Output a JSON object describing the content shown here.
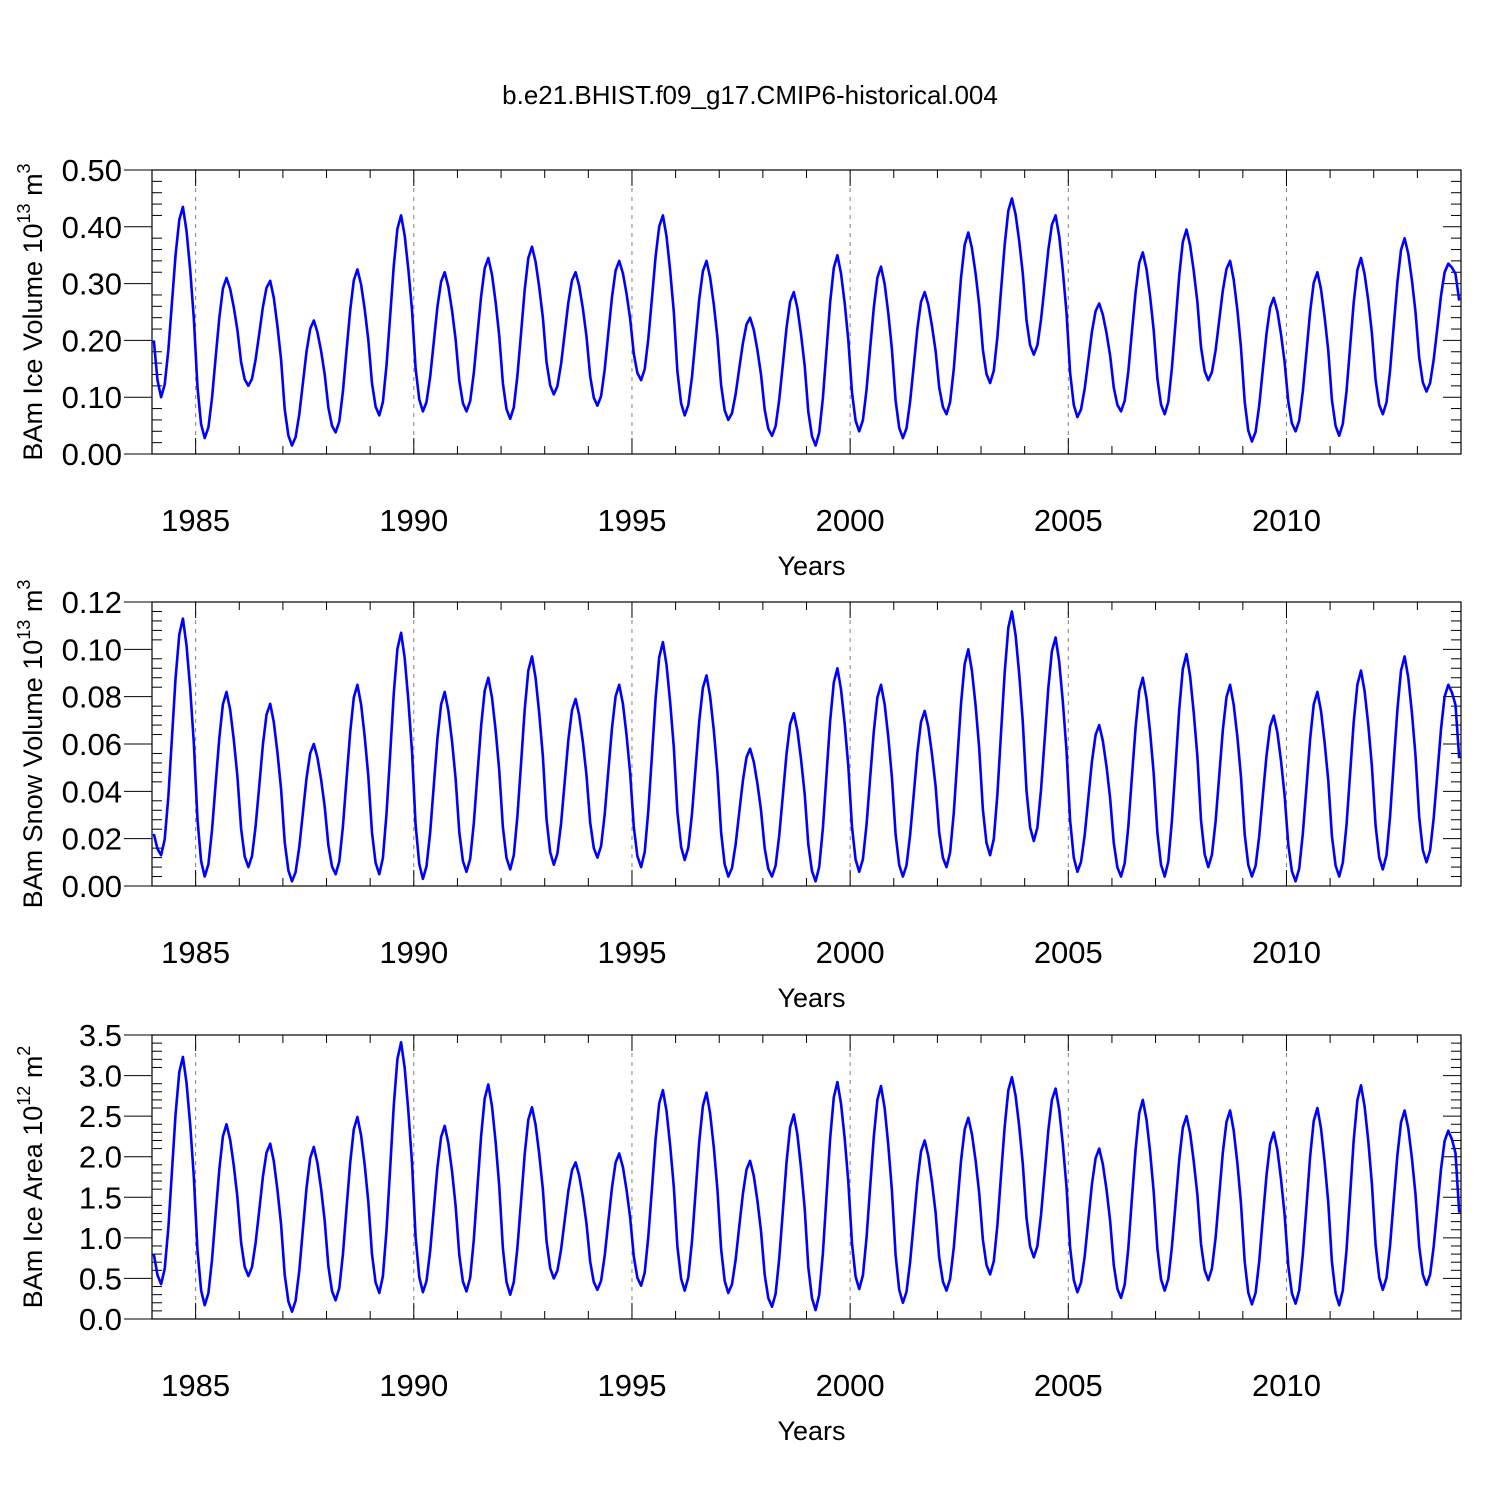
{
  "title": "b.e21.BHIST.f09_g17.CMIP6-historical.004",
  "style": {
    "line_color": "#0000ff",
    "axis_color": "#000000",
    "guide_color": "#808080"
  },
  "chart_data": [
    {
      "type": "line",
      "ylabel_main": "BAm Ice Volume 10",
      "ylabel_sup": "13",
      "ylabel_unit": " m",
      "ylabel_unit_sup": "3",
      "xlabel": "Years",
      "xlim": [
        1984.0,
        2014.0
      ],
      "ylim": [
        0.0,
        0.5
      ],
      "yticks": [
        0.0,
        0.1,
        0.2,
        0.3,
        0.4,
        0.5
      ],
      "ytick_labels": [
        "0.00",
        "0.10",
        "0.20",
        "0.30",
        "0.40",
        "0.50"
      ],
      "xticks": [
        1985,
        1990,
        1995,
        2000,
        2005,
        2010
      ],
      "xtick_labels": [
        "1985",
        "1990",
        "1995",
        "2000",
        "2005",
        "2010"
      ],
      "guide_lines_x": [
        1985,
        1990,
        1995,
        2000,
        2005,
        2010
      ],
      "series_peaks": [
        0.435,
        0.31,
        0.305,
        0.235,
        0.325,
        0.42,
        0.32,
        0.345,
        0.365,
        0.32,
        0.34,
        0.42,
        0.34,
        0.24,
        0.285,
        0.35,
        0.33,
        0.285,
        0.39,
        0.45,
        0.42,
        0.265,
        0.355,
        0.395,
        0.34,
        0.275,
        0.32,
        0.345,
        0.38,
        0.335
      ],
      "series_mins": [
        0.1,
        0.028,
        0.12,
        0.015,
        0.038,
        0.068,
        0.075,
        0.075,
        0.062,
        0.105,
        0.085,
        0.13,
        0.068,
        0.06,
        0.032,
        0.015,
        0.04,
        0.028,
        0.07,
        0.125,
        0.175,
        0.065,
        0.075,
        0.07,
        0.13,
        0.022,
        0.04,
        0.032,
        0.07,
        0.11
      ],
      "series_start": 0.2,
      "series_end": 0.27
    },
    {
      "type": "line",
      "ylabel_main": "BAm Snow Volume 10",
      "ylabel_sup": "13",
      "ylabel_unit": " m",
      "ylabel_unit_sup": "3",
      "xlabel": "Years",
      "xlim": [
        1984.0,
        2014.0
      ],
      "ylim": [
        0.0,
        0.12
      ],
      "yticks": [
        0.0,
        0.02,
        0.04,
        0.06,
        0.08,
        0.1,
        0.12
      ],
      "ytick_labels": [
        "0.00",
        "0.02",
        "0.04",
        "0.06",
        "0.08",
        "0.10",
        "0.12"
      ],
      "xticks": [
        1985,
        1990,
        1995,
        2000,
        2005,
        2010
      ],
      "xtick_labels": [
        "1985",
        "1990",
        "1995",
        "2000",
        "2005",
        "2010"
      ],
      "guide_lines_x": [
        1985,
        1990,
        1995,
        2000,
        2005,
        2010
      ],
      "series_peaks": [
        0.113,
        0.082,
        0.077,
        0.06,
        0.085,
        0.107,
        0.082,
        0.088,
        0.097,
        0.079,
        0.085,
        0.103,
        0.089,
        0.058,
        0.073,
        0.092,
        0.085,
        0.074,
        0.1,
        0.116,
        0.105,
        0.068,
        0.088,
        0.098,
        0.085,
        0.072,
        0.082,
        0.091,
        0.097,
        0.085
      ],
      "series_mins": [
        0.013,
        0.004,
        0.008,
        0.002,
        0.005,
        0.005,
        0.003,
        0.006,
        0.007,
        0.009,
        0.012,
        0.008,
        0.011,
        0.004,
        0.004,
        0.002,
        0.006,
        0.004,
        0.008,
        0.013,
        0.019,
        0.006,
        0.004,
        0.004,
        0.008,
        0.004,
        0.002,
        0.004,
        0.007,
        0.01
      ],
      "series_start": 0.022,
      "series_end": 0.054
    },
    {
      "type": "line",
      "ylabel_main": "BAm Ice Area 10",
      "ylabel_sup": "12",
      "ylabel_unit": " m",
      "ylabel_unit_sup": "2",
      "xlabel": "Years",
      "xlim": [
        1984.0,
        2014.0
      ],
      "ylim": [
        0.0,
        3.5
      ],
      "yticks": [
        0.0,
        0.5,
        1.0,
        1.5,
        2.0,
        2.5,
        3.0,
        3.5
      ],
      "ytick_labels": [
        "0.0",
        "0.5",
        "1.0",
        "1.5",
        "2.0",
        "2.5",
        "3.0",
        "3.5"
      ],
      "xticks": [
        1985,
        1990,
        1995,
        2000,
        2005,
        2010
      ],
      "xtick_labels": [
        "1985",
        "1990",
        "1995",
        "2000",
        "2005",
        "2010"
      ],
      "guide_lines_x": [
        1985,
        1990,
        1995,
        2000,
        2005,
        2010
      ],
      "series_peaks": [
        3.23,
        2.4,
        2.16,
        2.12,
        2.49,
        3.41,
        2.38,
        2.89,
        2.61,
        1.93,
        2.04,
        2.82,
        2.79,
        1.95,
        2.52,
        2.92,
        2.87,
        2.2,
        2.48,
        2.98,
        2.84,
        2.1,
        2.7,
        2.5,
        2.57,
        2.3,
        2.6,
        2.88,
        2.57,
        2.32
      ],
      "series_mins": [
        0.43,
        0.17,
        0.53,
        0.09,
        0.23,
        0.32,
        0.33,
        0.34,
        0.3,
        0.5,
        0.36,
        0.41,
        0.35,
        0.32,
        0.15,
        0.11,
        0.37,
        0.2,
        0.35,
        0.55,
        0.76,
        0.33,
        0.26,
        0.35,
        0.48,
        0.18,
        0.19,
        0.17,
        0.36,
        0.42
      ],
      "series_start": 0.8,
      "series_end": 1.31
    }
  ]
}
